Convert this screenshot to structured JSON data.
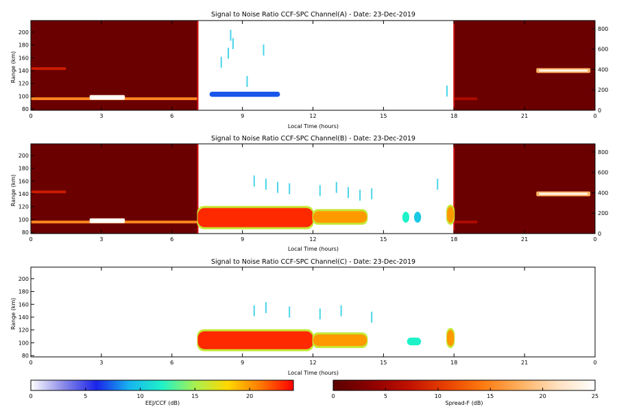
{
  "chart_data": [
    {
      "type": "heatmap",
      "title": "Signal to Noise Ratio CCF-SPC Channel(A) - Date: 23-Dec-2019",
      "xlabel": "Local Time (hours)",
      "ylabel": "Range (km)",
      "xlim": [
        0,
        24
      ],
      "ylim": [
        78,
        218
      ],
      "x_ticks": [
        "0",
        "3",
        "6",
        "9",
        "12",
        "15",
        "18",
        "21",
        "0"
      ],
      "y_ticks": [
        "80",
        "100",
        "120",
        "140",
        "160",
        "180",
        "200"
      ],
      "right_axis_ticks": [
        "0",
        "200",
        "400",
        "600",
        "800"
      ],
      "right_axis_lim": [
        0,
        880
      ],
      "night_blocks": [
        {
          "x0": 0,
          "x1": 7.1,
          "background": "#6b0000",
          "bands": [
            {
              "x0": 0,
              "x1": 7.1,
              "y": 96,
              "intensity": 15
            },
            {
              "x0": 0,
              "x1": 1.5,
              "y": 143,
              "intensity": 8
            },
            {
              "x0": 2.5,
              "x1": 4,
              "y": 98,
              "intensity": 24
            }
          ]
        },
        {
          "x0": 18,
          "x1": 24,
          "background": "#6b0000",
          "bands": [
            {
              "x0": 21.5,
              "x1": 23.8,
              "y": 140,
              "intensity": 18
            },
            {
              "x0": 18,
              "x1": 19,
              "y": 96,
              "intensity": 6
            }
          ]
        }
      ],
      "eej_echoes": [
        {
          "x0": 7.6,
          "x1": 10.6,
          "y0": 99,
          "y1": 107,
          "snr": 7
        }
      ],
      "scattered_echoes": [
        [
          8.1,
          153
        ],
        [
          8.4,
          167
        ],
        [
          8.5,
          195
        ],
        [
          8.6,
          182
        ],
        [
          9.2,
          123
        ],
        [
          9.9,
          172
        ],
        [
          17.7,
          108
        ]
      ]
    },
    {
      "type": "heatmap",
      "title": "Signal to Noise Ratio CCF-SPC Channel(B) - Date: 23-Dec-2019",
      "xlabel": "Local Time (hours)",
      "ylabel": "Range (km)",
      "xlim": [
        0,
        24
      ],
      "ylim": [
        78,
        218
      ],
      "x_ticks": [
        "0",
        "3",
        "6",
        "9",
        "12",
        "15",
        "18",
        "21",
        "0"
      ],
      "y_ticks": [
        "80",
        "100",
        "120",
        "140",
        "160",
        "180",
        "200"
      ],
      "right_axis_ticks": [
        "0",
        "200",
        "400",
        "600",
        "800"
      ],
      "right_axis_lim": [
        0,
        880
      ],
      "night_blocks": [
        {
          "x0": 0,
          "x1": 7.1,
          "background": "#6b0000",
          "bands": [
            {
              "x0": 0,
              "x1": 7.1,
              "y": 96,
              "intensity": 15
            },
            {
              "x0": 0,
              "x1": 1.5,
              "y": 143,
              "intensity": 8
            },
            {
              "x0": 2.5,
              "x1": 4,
              "y": 98,
              "intensity": 24
            }
          ]
        },
        {
          "x0": 18,
          "x1": 24,
          "background": "#6b0000",
          "bands": [
            {
              "x0": 21.5,
              "x1": 23.8,
              "y": 140,
              "intensity": 18
            },
            {
              "x0": 18,
              "x1": 19,
              "y": 96,
              "intensity": 6
            }
          ]
        }
      ],
      "eej_echoes": [
        {
          "x0": 7.1,
          "x1": 12.0,
          "y0": 88,
          "y1": 118,
          "snr": 23
        },
        {
          "x0": 12.0,
          "x1": 14.3,
          "y0": 95,
          "y1": 113,
          "snr": 20
        },
        {
          "x0": 15.8,
          "x1": 16.1,
          "y0": 95,
          "y1": 112,
          "snr": 12
        },
        {
          "x0": 16.3,
          "x1": 16.6,
          "y0": 95,
          "y1": 112,
          "snr": 10
        },
        {
          "x0": 17.7,
          "x1": 18.0,
          "y0": 95,
          "y1": 120,
          "snr": 20
        }
      ],
      "scattered_echoes": [
        [
          9.5,
          160
        ],
        [
          10.0,
          155
        ],
        [
          10.5,
          150
        ],
        [
          11.0,
          148
        ],
        [
          12.3,
          145
        ],
        [
          13.0,
          150
        ],
        [
          13.5,
          142
        ],
        [
          14.0,
          138
        ],
        [
          14.5,
          140
        ],
        [
          17.3,
          155
        ]
      ]
    },
    {
      "type": "heatmap",
      "title": "Signal to Noise Ratio CCF-SPC Channel(C) - Date: 23-Dec-2019",
      "xlabel": "Local Time (hours)",
      "ylabel": "Range (km)",
      "xlim": [
        0,
        24
      ],
      "ylim": [
        78,
        218
      ],
      "x_ticks": [
        "0",
        "3",
        "6",
        "9",
        "12",
        "15",
        "18",
        "21",
        "0"
      ],
      "y_ticks": [
        "80",
        "100",
        "120",
        "140",
        "160",
        "180",
        "200"
      ],
      "night_blocks": [],
      "eej_echoes": [
        {
          "x0": 7.1,
          "x1": 12.0,
          "y0": 90,
          "y1": 118,
          "snr": 23
        },
        {
          "x0": 12.0,
          "x1": 14.3,
          "y0": 95,
          "y1": 113,
          "snr": 20
        },
        {
          "x0": 16.0,
          "x1": 16.6,
          "y0": 96,
          "y1": 108,
          "snr": 12
        },
        {
          "x0": 17.7,
          "x1": 18.0,
          "y0": 95,
          "y1": 120,
          "snr": 20
        }
      ],
      "scattered_echoes": [
        [
          9.5,
          150
        ],
        [
          10.0,
          155
        ],
        [
          11.0,
          148
        ],
        [
          12.3,
          145
        ],
        [
          13.2,
          150
        ],
        [
          14.5,
          140
        ]
      ]
    }
  ],
  "colorbars": [
    {
      "label": "EEJ/CCF (dB)",
      "ticks": [
        "0",
        "5",
        "10",
        "15",
        "20"
      ],
      "range": [
        0,
        24
      ],
      "colors": [
        "#ffffff",
        "#8a8ae8",
        "#1a24e8",
        "#17b4f0",
        "#1ff2c8",
        "#a8f050",
        "#ffd800",
        "#ff7a00",
        "#ff0000"
      ]
    },
    {
      "label": "Spread-F (dB)",
      "ticks": [
        "0",
        "5",
        "10",
        "15",
        "20",
        "25"
      ],
      "range": [
        0,
        25
      ],
      "colors": [
        "#5a0000",
        "#8b0000",
        "#c01000",
        "#e84000",
        "#ff7a10",
        "#ffb060",
        "#ffe0c0",
        "#ffffff"
      ]
    }
  ]
}
